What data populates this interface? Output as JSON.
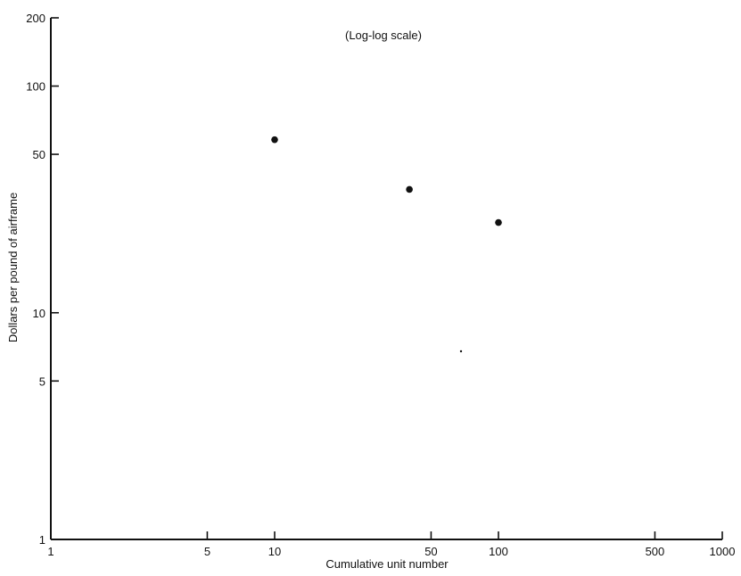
{
  "chart_data": {
    "type": "scatter",
    "annotation": "(Log-log scale)",
    "xlabel": "Cumulative unit number",
    "ylabel": "Dollars per pound of airframe",
    "x_scale": "log",
    "y_scale": "log",
    "xlim": [
      1,
      1000
    ],
    "ylim": [
      1,
      200
    ],
    "x_ticks": [
      1,
      5,
      10,
      50,
      100,
      500,
      1000
    ],
    "x_tick_labels": [
      "1",
      "5",
      "10",
      "50",
      "100",
      "500",
      "1000"
    ],
    "y_ticks": [
      1,
      5,
      10,
      50,
      100,
      200
    ],
    "y_tick_labels": [
      "1",
      "5",
      "10",
      "50",
      "100",
      "200"
    ],
    "grid": false,
    "series": [
      {
        "points": [
          {
            "x": 10,
            "y": 58
          },
          {
            "x": 40,
            "y": 35
          },
          {
            "x": 100,
            "y": 25
          }
        ],
        "color": "#111111"
      }
    ]
  }
}
